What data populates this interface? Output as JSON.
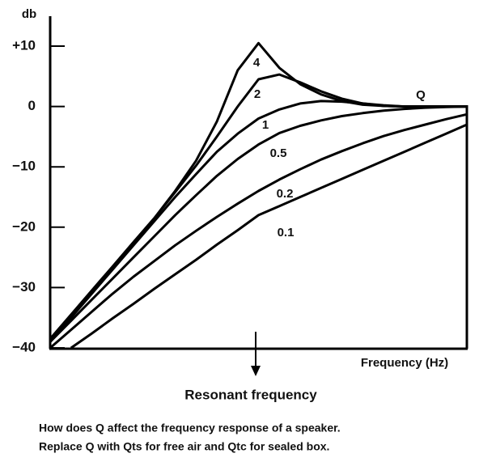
{
  "chart_data": {
    "type": "line",
    "y_label": "db",
    "x_label": "Frequency (Hz)",
    "legend_title": "Q",
    "annotation": "Resonant frequency",
    "caption": [
      "How does Q affect the frequency response of a speaker.",
      "Replace Q with Qts for free air and Qtc for sealed box."
    ],
    "ylim": [
      -40,
      15
    ],
    "yticks": [
      {
        "value": 10,
        "label": "+10"
      },
      0,
      {
        "value": -10,
        "label": "−10"
      },
      {
        "value": -20,
        "label": "−20"
      },
      {
        "value": -30,
        "label": "−30"
      },
      {
        "value": -40,
        "label": "−40"
      }
    ],
    "categories": [
      null,
      null,
      null,
      null,
      null,
      null,
      null,
      null,
      null,
      null,
      null,
      null,
      null,
      null,
      null,
      null,
      null,
      null,
      null,
      null,
      null
    ],
    "series": [
      {
        "name": "4",
        "color": "#000000",
        "values": [
          -38.5,
          -34.5,
          -30.5,
          -26.5,
          -22.5,
          -18.5,
          -14,
          -9,
          -2.5,
          6,
          10.5,
          6.4,
          3.7,
          2,
          0.9,
          0.3,
          0.1,
          0,
          0,
          0,
          0
        ]
      },
      {
        "name": "2",
        "color": "#000000",
        "values": [
          -38.5,
          -34.5,
          -30.5,
          -26.5,
          -22.5,
          -18.5,
          -14.2,
          -9.8,
          -5,
          0,
          4.5,
          5.3,
          4,
          2.5,
          1.3,
          0.5,
          0.1,
          0,
          0,
          0,
          0
        ]
      },
      {
        "name": "1",
        "color": "#000000",
        "values": [
          -39,
          -35,
          -31,
          -27,
          -23,
          -19,
          -15,
          -11.2,
          -7.5,
          -4.5,
          -2,
          -0.5,
          0.5,
          0.9,
          0.8,
          0.5,
          0.2,
          0,
          0,
          0,
          0
        ]
      },
      {
        "name": "0.5",
        "color": "#000000",
        "values": [
          -39,
          -35.5,
          -32,
          -28.5,
          -25,
          -21.5,
          -18,
          -14.7,
          -11.5,
          -8.7,
          -6.3,
          -4.4,
          -3.2,
          -2.3,
          -1.6,
          -1.1,
          -0.7,
          -0.4,
          -0.2,
          -0.1,
          0
        ]
      },
      {
        "name": "0.2",
        "color": "#000000",
        "values": [
          -40,
          -37,
          -34,
          -31,
          -28.2,
          -25.6,
          -23,
          -20.6,
          -18.3,
          -16.1,
          -14,
          -12.1,
          -10.4,
          -8.8,
          -7.4,
          -6.1,
          -4.9,
          -3.9,
          -3,
          -2.1,
          -1.3
        ]
      },
      {
        "name": "0.1",
        "color": "#000000",
        "values": [
          null,
          -40,
          -37.6,
          -35.1,
          -32.7,
          -30.2,
          -27.8,
          -25.4,
          -22.9,
          -20.5,
          -18,
          -16.5,
          -15,
          -13.5,
          -12,
          -10.5,
          -9,
          -7.5,
          -6,
          -4.5,
          -3
        ]
      }
    ]
  }
}
